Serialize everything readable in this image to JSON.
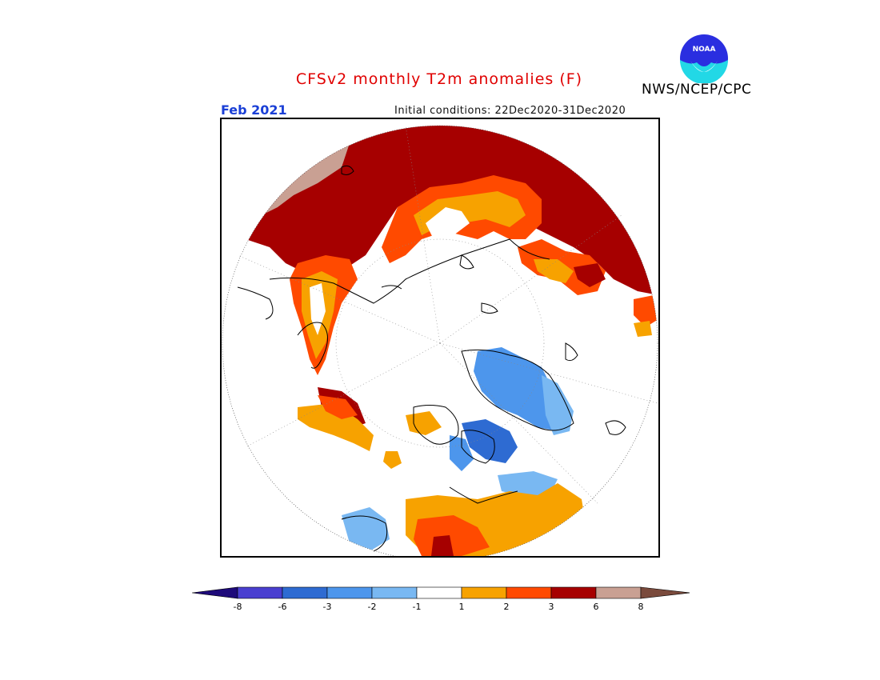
{
  "header": {
    "title": "CFSv2 monthly T2m anomalies (F)",
    "agency": "NWS/NCEP/CPC",
    "logo_text": "NOAA"
  },
  "map": {
    "period": "Feb 2021",
    "initial_conditions": "Initial conditions: 22Dec2020-31Dec2020",
    "projection": "north-polar-stereographic"
  },
  "legend": {
    "tick_labels": [
      "-8",
      "-6",
      "-3",
      "-2",
      "-1",
      "1",
      "2",
      "3",
      "6",
      "8"
    ],
    "colors": {
      "below_-8": "#1e0a7a",
      "-8_to_-6": "#4a3fd0",
      "-6_to_-3": "#2e6bd2",
      "-3_to_-2": "#4d96ec",
      "-2_to_-1": "#79b8f2",
      "-1_to_1": "#ffffff",
      "1_to_2": "#f7a200",
      "2_to_3": "#ff4a00",
      "3_to_6": "#a60000",
      "6_to_8": "#c9a093",
      "above_8": "#7a4a3c"
    }
  }
}
